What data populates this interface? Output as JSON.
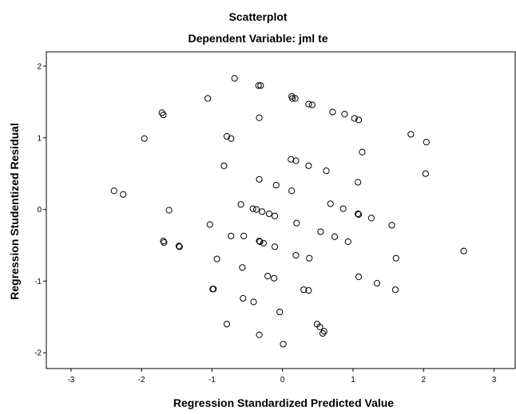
{
  "chart_data": {
    "type": "scatter",
    "title": "Scatterplot",
    "subtitle": "Dependent Variable: jml te",
    "xlabel": "Regression Standardized Predicted Value",
    "ylabel": "Regression Studentized Residual",
    "xlim": [
      -3.35,
      3.3
    ],
    "ylim": [
      -2.22,
      2.2
    ],
    "xticks": [
      -3,
      -2,
      -1,
      0,
      1,
      2,
      3
    ],
    "yticks": [
      -2,
      -1,
      0,
      1,
      2
    ],
    "grid": false,
    "legend": "none",
    "marker_color": "#000000",
    "points": [
      [
        -0.68,
        1.83
      ],
      [
        -0.34,
        1.73
      ],
      [
        -0.31,
        1.73
      ],
      [
        0.13,
        1.58
      ],
      [
        0.14,
        1.55
      ],
      [
        0.18,
        1.55
      ],
      [
        -1.06,
        1.55
      ],
      [
        0.37,
        1.47
      ],
      [
        0.42,
        1.46
      ],
      [
        0.71,
        1.36
      ],
      [
        0.88,
        1.33
      ],
      [
        1.02,
        1.27
      ],
      [
        1.08,
        1.25
      ],
      [
        -1.71,
        1.35
      ],
      [
        -1.69,
        1.32
      ],
      [
        -0.33,
        1.28
      ],
      [
        1.82,
        1.05
      ],
      [
        2.04,
        0.94
      ],
      [
        -0.79,
        1.02
      ],
      [
        -0.73,
        0.99
      ],
      [
        -1.96,
        0.99
      ],
      [
        1.13,
        0.8
      ],
      [
        0.12,
        0.7
      ],
      [
        0.19,
        0.68
      ],
      [
        0.37,
        0.61
      ],
      [
        0.62,
        0.54
      ],
      [
        -0.83,
        0.61
      ],
      [
        2.03,
        0.5
      ],
      [
        -0.33,
        0.42
      ],
      [
        -0.09,
        0.34
      ],
      [
        0.13,
        0.26
      ],
      [
        1.07,
        0.38
      ],
      [
        -2.39,
        0.26
      ],
      [
        -2.26,
        0.21
      ],
      [
        -0.59,
        0.07
      ],
      [
        -0.42,
        0.01
      ],
      [
        -0.37,
        0.0
      ],
      [
        -0.29,
        -0.03
      ],
      [
        -0.19,
        -0.06
      ],
      [
        -0.11,
        -0.09
      ],
      [
        0.68,
        0.08
      ],
      [
        0.86,
        0.01
      ],
      [
        1.07,
        -0.06
      ],
      [
        1.08,
        -0.07
      ],
      [
        1.26,
        -0.12
      ],
      [
        -1.61,
        -0.01
      ],
      [
        1.55,
        -0.22
      ],
      [
        0.2,
        -0.19
      ],
      [
        -1.03,
        -0.21
      ],
      [
        0.54,
        -0.31
      ],
      [
        0.74,
        -0.38
      ],
      [
        0.93,
        -0.45
      ],
      [
        -0.73,
        -0.37
      ],
      [
        -0.55,
        -0.37
      ],
      [
        -0.33,
        -0.44
      ],
      [
        -0.32,
        -0.45
      ],
      [
        -0.27,
        -0.47
      ],
      [
        -0.11,
        -0.52
      ],
      [
        -1.69,
        -0.44
      ],
      [
        -1.68,
        -0.46
      ],
      [
        -1.47,
        -0.51
      ],
      [
        -1.46,
        -0.52
      ],
      [
        2.57,
        -0.58
      ],
      [
        0.19,
        -0.64
      ],
      [
        0.38,
        -0.68
      ],
      [
        1.61,
        -0.68
      ],
      [
        -0.93,
        -0.69
      ],
      [
        -0.57,
        -0.81
      ],
      [
        -0.21,
        -0.93
      ],
      [
        -0.12,
        -0.96
      ],
      [
        1.08,
        -0.94
      ],
      [
        1.34,
        -1.03
      ],
      [
        -0.99,
        -1.11
      ],
      [
        -0.98,
        -1.11
      ],
      [
        0.3,
        -1.12
      ],
      [
        0.37,
        -1.13
      ],
      [
        1.6,
        -1.12
      ],
      [
        -0.56,
        -1.24
      ],
      [
        -0.41,
        -1.29
      ],
      [
        -0.04,
        -1.43
      ],
      [
        -0.79,
        -1.6
      ],
      [
        0.49,
        -1.6
      ],
      [
        0.53,
        -1.64
      ],
      [
        0.59,
        -1.7
      ],
      [
        0.57,
        -1.73
      ],
      [
        -0.33,
        -1.75
      ],
      [
        0.01,
        -1.88
      ]
    ]
  }
}
